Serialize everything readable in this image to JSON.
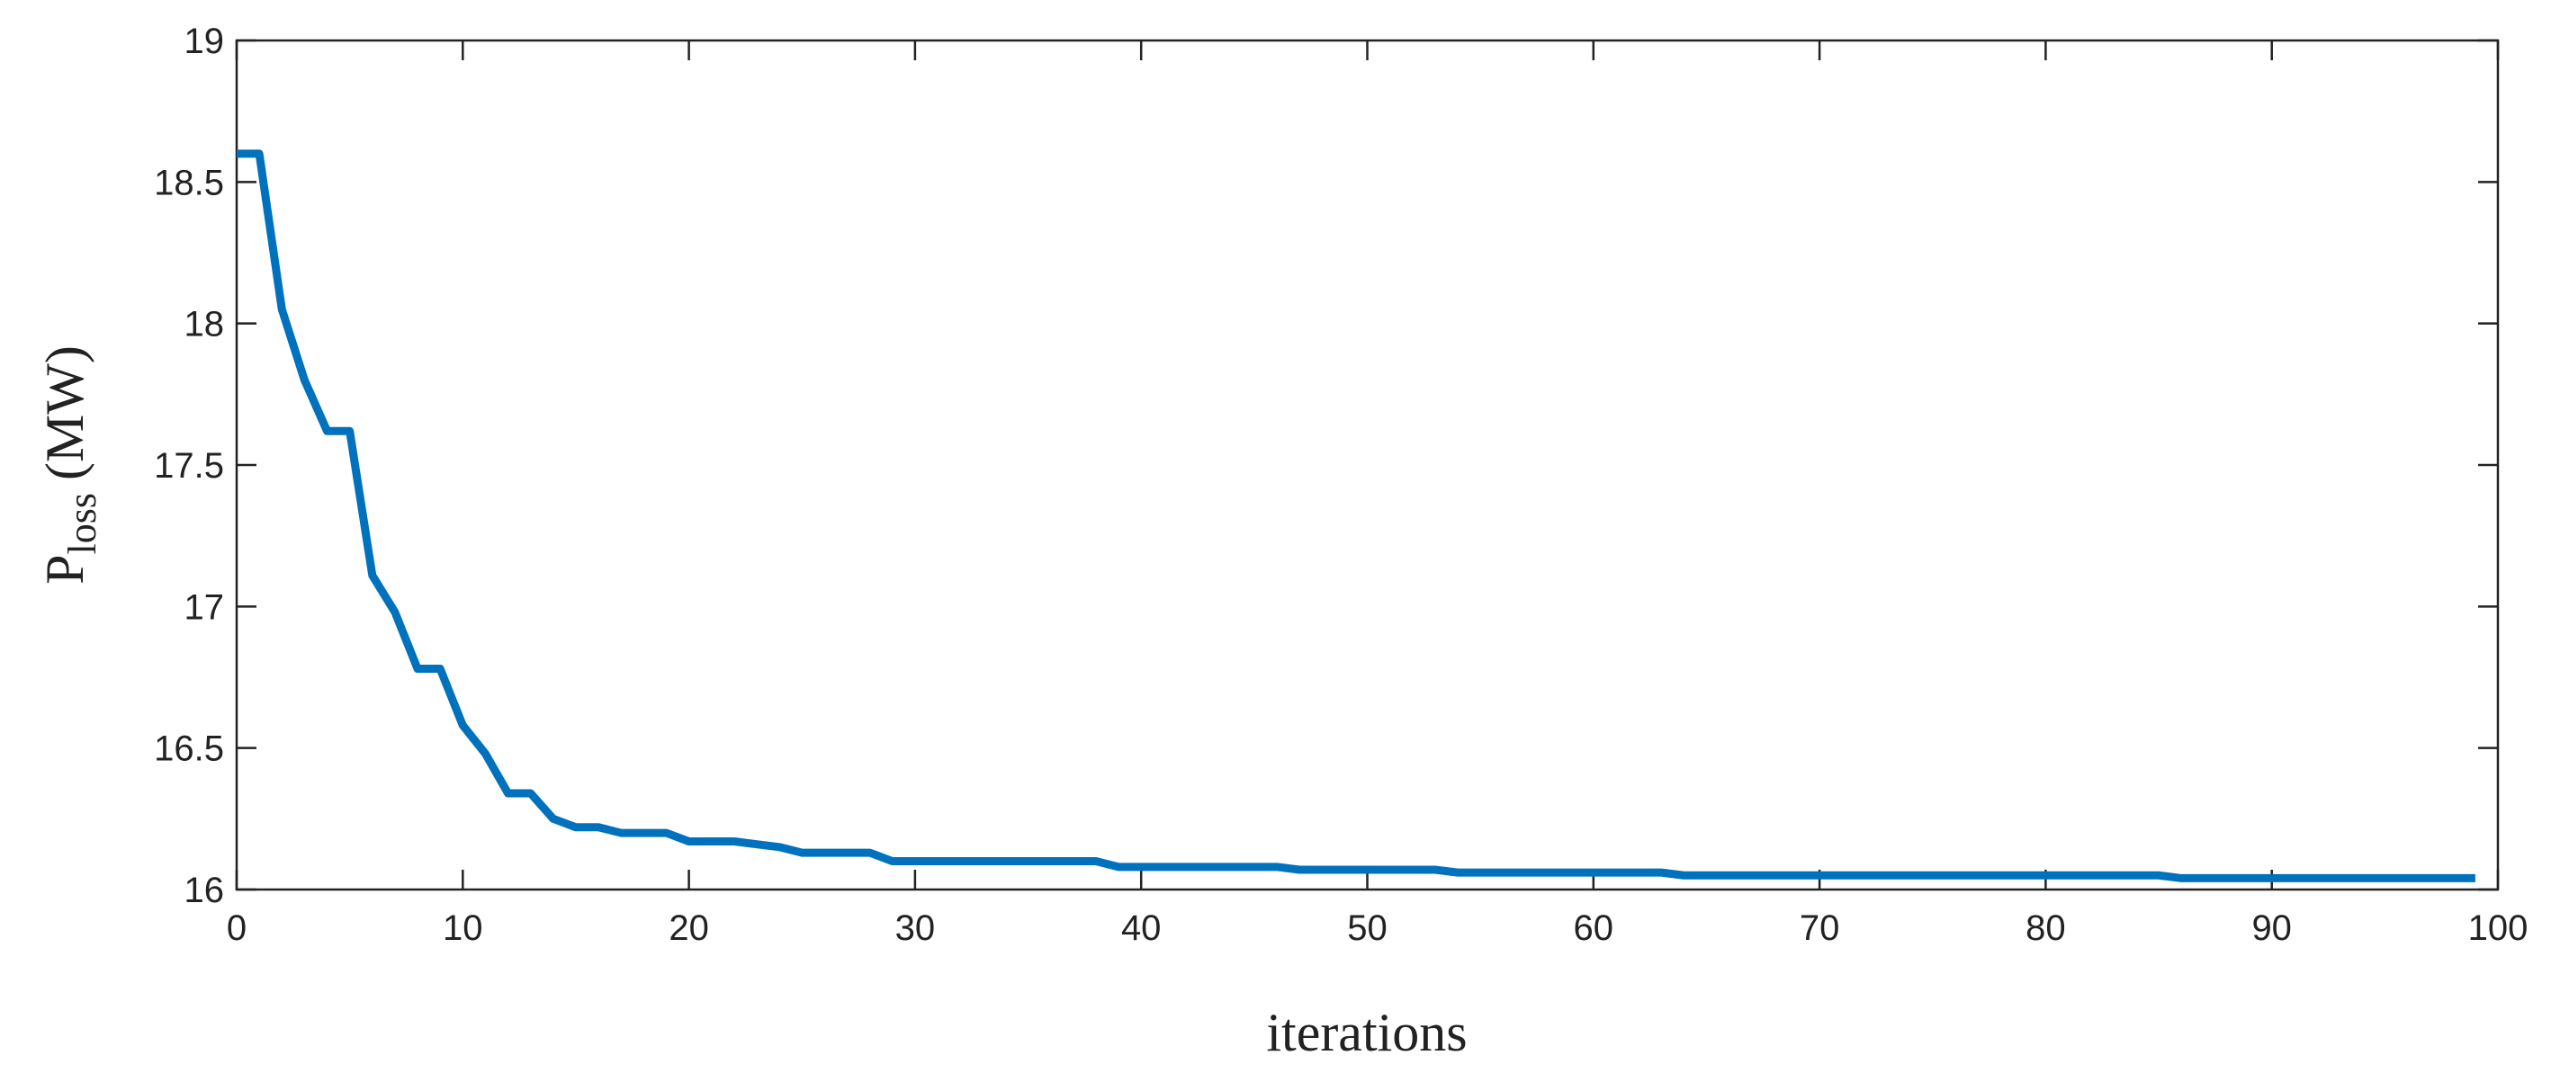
{
  "chart_data": {
    "type": "line",
    "xlabel": "iterations",
    "ylabel": {
      "main": "P",
      "sub": "loss",
      "unit": "(MW)"
    },
    "x": [
      0,
      1,
      2,
      3,
      4,
      5,
      6,
      7,
      8,
      9,
      10,
      11,
      12,
      13,
      14,
      15,
      16,
      17,
      18,
      19,
      20,
      21,
      22,
      23,
      24,
      25,
      26,
      27,
      28,
      29,
      30,
      31,
      32,
      33,
      34,
      35,
      36,
      37,
      38,
      39,
      40,
      41,
      42,
      43,
      44,
      45,
      46,
      47,
      48,
      49,
      50,
      51,
      52,
      53,
      54,
      55,
      56,
      57,
      58,
      59,
      60,
      61,
      62,
      63,
      64,
      65,
      66,
      67,
      68,
      69,
      70,
      71,
      72,
      73,
      74,
      75,
      76,
      77,
      78,
      79,
      80,
      81,
      82,
      83,
      84,
      85,
      86,
      87,
      88,
      89,
      90,
      91,
      92,
      93,
      94,
      95,
      96,
      97,
      98,
      99
    ],
    "series": [
      {
        "color": "#0072bd",
        "values": [
          18.6,
          18.6,
          18.05,
          17.8,
          17.62,
          17.62,
          17.11,
          16.98,
          16.78,
          16.78,
          16.58,
          16.48,
          16.34,
          16.34,
          16.25,
          16.22,
          16.22,
          16.2,
          16.2,
          16.2,
          16.17,
          16.17,
          16.17,
          16.16,
          16.15,
          16.13,
          16.13,
          16.13,
          16.13,
          16.1,
          16.1,
          16.1,
          16.1,
          16.1,
          16.1,
          16.1,
          16.1,
          16.1,
          16.1,
          16.08,
          16.08,
          16.08,
          16.08,
          16.08,
          16.08,
          16.08,
          16.08,
          16.07,
          16.07,
          16.07,
          16.07,
          16.07,
          16.07,
          16.07,
          16.06,
          16.06,
          16.06,
          16.06,
          16.06,
          16.06,
          16.06,
          16.06,
          16.06,
          16.06,
          16.05,
          16.05,
          16.05,
          16.05,
          16.05,
          16.05,
          16.05,
          16.05,
          16.05,
          16.05,
          16.05,
          16.05,
          16.05,
          16.05,
          16.05,
          16.05,
          16.05,
          16.05,
          16.05,
          16.05,
          16.05,
          16.05,
          16.04,
          16.04,
          16.04,
          16.04,
          16.04,
          16.04,
          16.04,
          16.04,
          16.04,
          16.04,
          16.04,
          16.04,
          16.04,
          16.04
        ]
      }
    ],
    "xlim": [
      0,
      100
    ],
    "xticks": [
      0,
      10,
      20,
      30,
      40,
      50,
      60,
      70,
      80,
      90,
      100
    ],
    "ylim": [
      16,
      19
    ],
    "yticks": [
      16,
      16.5,
      17,
      17.5,
      18,
      18.5,
      19
    ],
    "grid": false
  }
}
